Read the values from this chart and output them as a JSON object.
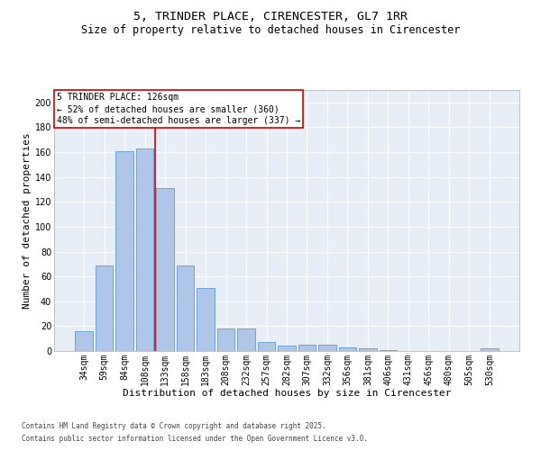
{
  "title_line1": "5, TRINDER PLACE, CIRENCESTER, GL7 1RR",
  "title_line2": "Size of property relative to detached houses in Cirencester",
  "xlabel": "Distribution of detached houses by size in Cirencester",
  "ylabel": "Number of detached properties",
  "categories": [
    "34sqm",
    "59sqm",
    "84sqm",
    "108sqm",
    "133sqm",
    "158sqm",
    "183sqm",
    "208sqm",
    "232sqm",
    "257sqm",
    "282sqm",
    "307sqm",
    "332sqm",
    "356sqm",
    "381sqm",
    "406sqm",
    "431sqm",
    "456sqm",
    "480sqm",
    "505sqm",
    "530sqm"
  ],
  "values": [
    16,
    69,
    161,
    163,
    131,
    69,
    51,
    18,
    18,
    7,
    4,
    5,
    5,
    3,
    2,
    1,
    0,
    0,
    0,
    0,
    2
  ],
  "bar_color": "#aec6e8",
  "bar_edge_color": "#5b9bd5",
  "vline_x": 3.5,
  "vline_color": "#cc0000",
  "annotation_text": "5 TRINDER PLACE: 126sqm\n← 52% of detached houses are smaller (360)\n48% of semi-detached houses are larger (337) →",
  "annotation_box_color": "#cc0000",
  "annotation_bg": "white",
  "ylim": [
    0,
    210
  ],
  "yticks": [
    0,
    20,
    40,
    60,
    80,
    100,
    120,
    140,
    160,
    180,
    200
  ],
  "background_color": "#e8eef7",
  "grid_color": "white",
  "footer_line1": "Contains HM Land Registry data © Crown copyright and database right 2025.",
  "footer_line2": "Contains public sector information licensed under the Open Government Licence v3.0.",
  "title_fontsize": 9.5,
  "subtitle_fontsize": 8.5,
  "axis_label_fontsize": 8,
  "tick_fontsize": 7,
  "annot_fontsize": 7,
  "footer_fontsize": 5.5
}
